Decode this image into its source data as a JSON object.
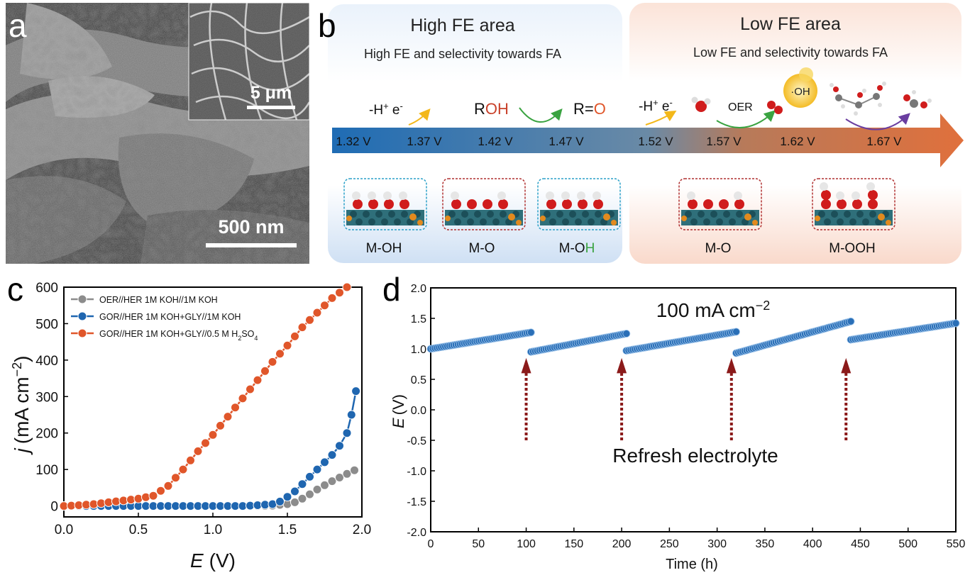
{
  "panel_a": {
    "letter": "a",
    "scale_bar_main": "500 nm",
    "scale_bar_inset": "5 μm"
  },
  "panel_b": {
    "letter": "b",
    "high_area_title": "High FE area",
    "high_area_subtitle": "High FE and selectivity towards FA",
    "low_area_title": "Low FE area",
    "low_area_subtitle": "Low FE and selectivity towards FA",
    "potentials": [
      "1.32 V",
      "1.37 V",
      "1.42 V",
      "1.47 V",
      "1.52 V",
      "1.57 V",
      "1.62 V",
      "1.67 V"
    ],
    "step1_label_main": "-H",
    "step1_label_sup1": "+",
    "step1_label_mid": " e",
    "step1_label_sup2": "-",
    "roh_r": "R",
    "roh_oh": "OH",
    "ro_r": "R=",
    "ro_o": "O",
    "step2_label_main": "-H",
    "step2_label_sup1": "+",
    "step2_label_mid": " e",
    "step2_label_sup2": "-",
    "oer_label": "OER",
    "oh_radical": "·OH",
    "structures": [
      "M-OH",
      "M-O",
      "M-O",
      "M-O",
      "M-OOH"
    ],
    "struct3_m": "M-O",
    "struct3_h": "H",
    "colors": {
      "arrow_start": "#1f6cb4",
      "arrow_end": "#e0703c",
      "high_bg": "#dde9f7",
      "low_bg": "#fbe3d8",
      "oxygen": "#d01c1c",
      "green": "#3aa341",
      "purple": "#6a3ea0",
      "yellow": "#f3b81a"
    }
  },
  "panel_c": {
    "letter": "c"
  },
  "panel_d": {
    "letter": "d"
  },
  "chart_data": [
    {
      "type": "line",
      "panel": "c",
      "xlabel_var": "E",
      "xlabel_unit": "(V)",
      "ylabel_var": "j",
      "ylabel_unit": "(mA cm",
      "ylabel_exp": "−2",
      "ylabel_close": ")",
      "xlim": [
        0.0,
        2.0
      ],
      "ylim": [
        -30,
        600
      ],
      "xticks": [
        "0.0",
        "0.5",
        "1.0",
        "1.5",
        "2.0"
      ],
      "yticks": [
        "0",
        "100",
        "200",
        "300",
        "400",
        "500",
        "600"
      ],
      "legend": [
        "OER//HER 1M KOH//1M KOH",
        "GOR//HER 1M KOH+GLY//1M KOH",
        "GOR//HER 1M KOH+GLY//0.5 M H",
        "2",
        "SO",
        "4"
      ],
      "series": [
        {
          "name": "OER//HER 1M KOH//1M KOH",
          "color": "#8c8c8c",
          "x": [
            0.0,
            0.1,
            0.2,
            0.3,
            0.4,
            0.5,
            0.6,
            0.7,
            0.8,
            0.9,
            1.0,
            1.1,
            1.2,
            1.3,
            1.4,
            1.5,
            1.55,
            1.6,
            1.65,
            1.7,
            1.75,
            1.8,
            1.85,
            1.9,
            1.95
          ],
          "y": [
            0,
            0,
            0,
            0,
            0,
            0,
            0,
            0,
            0,
            0,
            0,
            0,
            0,
            0,
            1,
            5,
            10,
            20,
            32,
            45,
            57,
            68,
            78,
            88,
            98
          ]
        },
        {
          "name": "GOR//HER 1M KOH+GLY//1M KOH",
          "color": "#1f66b0",
          "x": [
            0.0,
            0.1,
            0.2,
            0.3,
            0.4,
            0.5,
            0.6,
            0.7,
            0.8,
            0.9,
            1.0,
            1.1,
            1.2,
            1.3,
            1.4,
            1.45,
            1.5,
            1.55,
            1.6,
            1.65,
            1.7,
            1.75,
            1.8,
            1.85,
            1.9,
            1.93,
            1.96
          ],
          "y": [
            0,
            0,
            0,
            0,
            0,
            0,
            0,
            0,
            0,
            0,
            0,
            0,
            0,
            2,
            5,
            12,
            25,
            40,
            60,
            80,
            100,
            120,
            140,
            165,
            200,
            250,
            315
          ]
        },
        {
          "name": "GOR//HER 1M KOH+GLY//0.5 M H2SO4",
          "color": "#e0562a",
          "x": [
            0.0,
            0.1,
            0.2,
            0.3,
            0.4,
            0.5,
            0.6,
            0.7,
            0.8,
            0.9,
            1.0,
            1.1,
            1.2,
            1.3,
            1.4,
            1.5,
            1.6,
            1.7,
            1.8,
            1.9
          ],
          "y": [
            0,
            2,
            5,
            10,
            15,
            20,
            28,
            55,
            100,
            150,
            195,
            245,
            295,
            345,
            395,
            440,
            490,
            530,
            570,
            600
          ]
        }
      ]
    },
    {
      "type": "scatter",
      "panel": "d",
      "xlabel": "Time (h)",
      "ylabel_var": "E",
      "ylabel_unit": "(V)",
      "xlim": [
        0,
        550
      ],
      "ylim": [
        -2.0,
        2.0
      ],
      "xticks": [
        "0",
        "50",
        "100",
        "150",
        "200",
        "250",
        "300",
        "350",
        "400",
        "450",
        "500",
        "550"
      ],
      "yticks": [
        "2.0",
        "1.5",
        "1.0",
        "0.5",
        "0.0",
        "-0.5",
        "-1.0",
        "-1.5",
        "-2.0"
      ],
      "annotation_current": "100 mA cm",
      "annotation_current_exp": "−2",
      "annotation_refresh": "Refresh electrolyte",
      "refresh_times": [
        100,
        200,
        315,
        435
      ],
      "series": [
        {
          "name": "",
          "color": "#2a6fb7",
          "segments": [
            {
              "x_start": 0,
              "x_end": 105,
              "y_start": 1.0,
              "y_end": 1.27
            },
            {
              "x_start": 105,
              "x_end": 205,
              "y_start": 0.95,
              "y_end": 1.25
            },
            {
              "x_start": 205,
              "x_end": 320,
              "y_start": 0.97,
              "y_end": 1.28
            },
            {
              "x_start": 320,
              "x_end": 440,
              "y_start": 0.93,
              "y_end": 1.45
            },
            {
              "x_start": 440,
              "x_end": 550,
              "y_start": 1.15,
              "y_end": 1.42
            }
          ]
        }
      ]
    }
  ]
}
